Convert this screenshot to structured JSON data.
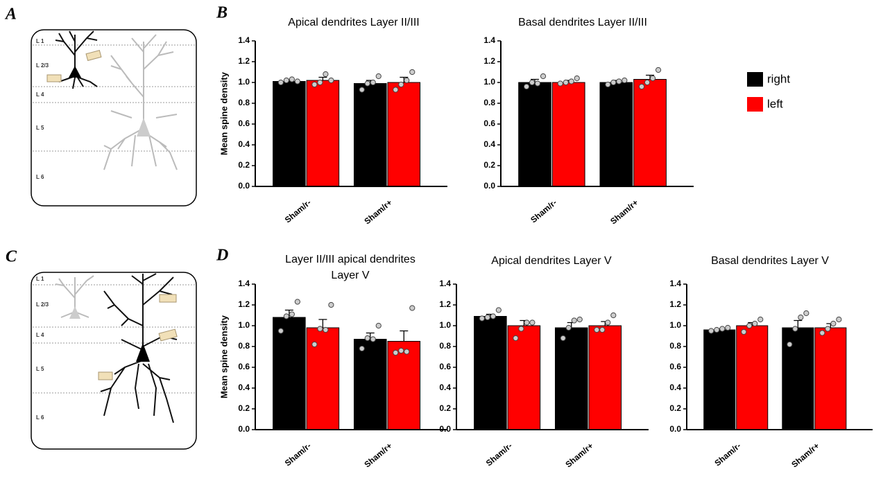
{
  "panels": [
    "A",
    "B",
    "C",
    "D"
  ],
  "diagrams": [
    {
      "layers": [
        "L 1",
        "L 2/3",
        "L 4",
        "L 5",
        "L 6"
      ]
    },
    {
      "layers": [
        "L 1",
        "L 2/3",
        "L 4",
        "L 5",
        "L 6"
      ]
    }
  ],
  "legend": [
    {
      "name": "right",
      "color": "#000000"
    },
    {
      "name": "left",
      "color": "#ff0000"
    }
  ],
  "chart_data": [
    {
      "type": "bar",
      "title": [
        "Apical dendrites Layer II/III"
      ],
      "y_label": "Mean spine density",
      "categories": [
        "Sham/r-",
        "Sham/r+"
      ],
      "series": [
        {
          "color": "#000000",
          "values": [
            1.01,
            0.99
          ],
          "errors": [
            0.02,
            0.03
          ],
          "points": [
            [
              1.0,
              1.02,
              1.03,
              1.01
            ],
            [
              0.93,
              0.99,
              1.0,
              1.06
            ]
          ]
        },
        {
          "color": "#ff0000",
          "values": [
            1.02,
            1.0
          ],
          "errors": [
            0.03,
            0.05
          ],
          "points": [
            [
              0.98,
              1.0,
              1.08,
              1.02
            ],
            [
              0.93,
              0.98,
              1.02,
              1.1
            ]
          ]
        }
      ],
      "ylim": [
        0,
        1.4
      ],
      "yticks": [
        {
          "value": 0,
          "label": "0.0"
        },
        0.2,
        0.4,
        0.6,
        0.8,
        {
          "value": 1,
          "label": "1.0"
        },
        1.2,
        1.4
      ]
    },
    {
      "type": "bar",
      "title": [
        "Basal dendrites Layer II/III"
      ],
      "categories": [
        "Sham/r-",
        "Sham/r+"
      ],
      "series": [
        {
          "color": "#000000",
          "values": [
            1.0,
            1.0
          ],
          "errors": [
            0.03,
            0.02
          ],
          "points": [
            [
              0.96,
              1.0,
              0.99,
              1.06
            ],
            [
              0.98,
              1.0,
              1.01,
              1.02
            ]
          ]
        },
        {
          "color": "#ff0000",
          "values": [
            1.0,
            1.03
          ],
          "errors": [
            0.02,
            0.04
          ],
          "points": [
            [
              0.99,
              1.0,
              1.01,
              1.04
            ],
            [
              0.96,
              1.0,
              1.04,
              1.12
            ]
          ]
        }
      ],
      "ylim": [
        0,
        1.4
      ],
      "yticks": [
        {
          "value": 0,
          "label": "0.0"
        },
        0.2,
        0.4,
        0.6,
        0.8,
        {
          "value": 1,
          "label": "1.0"
        },
        1.2,
        1.4
      ]
    },
    {
      "type": "bar",
      "title": [
        "Layer II/III apical dendrites",
        "Layer V"
      ],
      "y_label": "Mean spine density",
      "categories": [
        "Sham/r-",
        "Sham/r+"
      ],
      "series": [
        {
          "color": "#000000",
          "values": [
            1.08,
            0.87
          ],
          "errors": [
            0.07,
            0.06
          ],
          "points": [
            [
              0.95,
              1.09,
              1.11,
              1.23
            ],
            [
              0.78,
              0.88,
              0.87,
              1.0
            ]
          ]
        },
        {
          "color": "#ff0000",
          "values": [
            0.98,
            0.85
          ],
          "errors": [
            0.08,
            0.1
          ],
          "points": [
            [
              0.82,
              0.97,
              0.96,
              1.2
            ],
            [
              0.74,
              0.76,
              0.75,
              1.17
            ]
          ]
        }
      ],
      "ylim": [
        0,
        1.4
      ],
      "yticks": [
        {
          "value": 0,
          "label": "0.0"
        },
        0.2,
        0.4,
        0.6,
        0.8,
        {
          "value": 1,
          "label": "1.0"
        },
        1.2,
        1.4
      ]
    },
    {
      "type": "bar",
      "title": [
        "Apical dendrites Layer V"
      ],
      "categories": [
        "Sham/r-",
        "Sham/r+"
      ],
      "series": [
        {
          "color": "#000000",
          "values": [
            1.09,
            0.98
          ],
          "errors": [
            0.02,
            0.05
          ],
          "points": [
            [
              1.07,
              1.08,
              1.09,
              1.15
            ],
            [
              0.88,
              0.98,
              1.05,
              1.06
            ]
          ]
        },
        {
          "color": "#ff0000",
          "values": [
            1.0,
            1.0
          ],
          "errors": [
            0.05,
            0.04
          ],
          "points": [
            [
              0.88,
              0.97,
              1.03,
              1.03
            ],
            [
              0.96,
              0.96,
              1.03,
              1.1
            ]
          ]
        }
      ],
      "ylim": [
        0,
        1.4
      ],
      "yticks": [
        {
          "value": 0,
          "label": "0.0"
        },
        0.2,
        0.4,
        0.6,
        0.8,
        {
          "value": 1,
          "label": "1.0"
        },
        1.2,
        1.4
      ]
    },
    {
      "type": "bar",
      "title": [
        "Basal dendrites Layer V"
      ],
      "categories": [
        "Sham/r-",
        "Sham/r+"
      ],
      "series": [
        {
          "color": "#000000",
          "values": [
            0.96,
            0.98
          ],
          "errors": [
            0.01,
            0.07
          ],
          "points": [
            [
              0.95,
              0.96,
              0.97,
              0.98
            ],
            [
              0.82,
              0.97,
              1.08,
              1.12
            ]
          ]
        },
        {
          "color": "#ff0000",
          "values": [
            1.0,
            0.98
          ],
          "errors": [
            0.03,
            0.04
          ],
          "points": [
            [
              0.94,
              1.0,
              1.02,
              1.06
            ],
            [
              0.93,
              0.97,
              1.02,
              1.06
            ]
          ]
        }
      ],
      "ylim": [
        0,
        1.4
      ],
      "yticks": [
        {
          "value": 0,
          "label": "0.0"
        },
        0.2,
        0.4,
        0.6,
        0.8,
        {
          "value": 1,
          "label": "1.0"
        },
        1.2,
        1.4
      ]
    }
  ]
}
